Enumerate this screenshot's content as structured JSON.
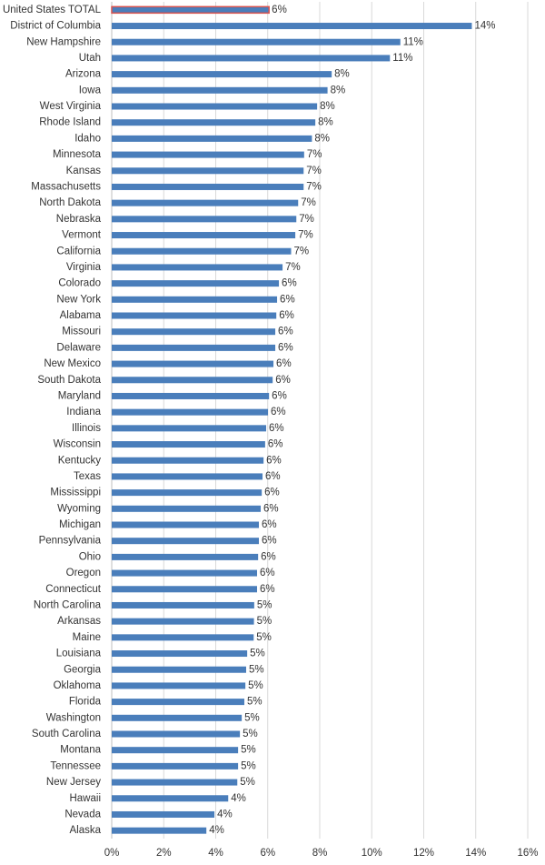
{
  "chart_data": {
    "type": "hbar",
    "categories": [
      "United States TOTAL",
      "District of Columbia",
      "New Hampshire",
      "Utah",
      "Arizona",
      "Iowa",
      "West Virginia",
      "Rhode Island",
      "Idaho",
      "Minnesota",
      "Kansas",
      "Massachusetts",
      "North Dakota",
      "Nebraska",
      "Vermont",
      "California",
      "Virginia",
      "Colorado",
      "New York",
      "Alabama",
      "Missouri",
      "Delaware",
      "New Mexico",
      "South Dakota",
      "Maryland",
      "Indiana",
      "Illinois",
      "Wisconsin",
      "Kentucky",
      "Texas",
      "Mississippi",
      "Wyoming",
      "Michigan",
      "Pennsylvania",
      "Ohio",
      "Oregon",
      "Connecticut",
      "North Carolina",
      "Arkansas",
      "Maine",
      "Louisiana",
      "Georgia",
      "Oklahoma",
      "Florida",
      "Washington",
      "South Carolina",
      "Montana",
      "Tennessee",
      "New Jersey",
      "Hawaii",
      "Nevada",
      "Alaska"
    ],
    "values": [
      6.05,
      13.85,
      11.1,
      10.7,
      8.46,
      8.3,
      7.9,
      7.83,
      7.7,
      7.4,
      7.38,
      7.38,
      7.17,
      7.1,
      7.06,
      6.9,
      6.57,
      6.43,
      6.36,
      6.33,
      6.29,
      6.29,
      6.22,
      6.19,
      6.05,
      6.01,
      5.94,
      5.9,
      5.84,
      5.8,
      5.77,
      5.73,
      5.66,
      5.66,
      5.63,
      5.59,
      5.59,
      5.48,
      5.47,
      5.46,
      5.21,
      5.17,
      5.14,
      5.1,
      5.0,
      4.93,
      4.86,
      4.86,
      4.83,
      4.48,
      3.95,
      3.64
    ],
    "value_labels": [
      "6%",
      "14%",
      "11%",
      "11%",
      "8%",
      "8%",
      "8%",
      "8%",
      "8%",
      "7%",
      "7%",
      "7%",
      "7%",
      "7%",
      "7%",
      "7%",
      "7%",
      "6%",
      "6%",
      "6%",
      "6%",
      "6%",
      "6%",
      "6%",
      "6%",
      "6%",
      "6%",
      "6%",
      "6%",
      "6%",
      "6%",
      "6%",
      "6%",
      "6%",
      "6%",
      "6%",
      "6%",
      "5%",
      "5%",
      "5%",
      "5%",
      "5%",
      "5%",
      "5%",
      "5%",
      "5%",
      "5%",
      "5%",
      "5%",
      "4%",
      "4%",
      "4%"
    ],
    "color": "#4a7ebb",
    "highlight": {
      "index": 0,
      "color": "#d9534f"
    },
    "xlim": [
      0,
      16
    ],
    "xticks": [
      {
        "value": 0,
        "label": "0%"
      },
      {
        "value": 2,
        "label": "2%"
      },
      {
        "value": 4,
        "label": "4%"
      },
      {
        "value": 6,
        "label": "6%"
      },
      {
        "value": 8,
        "label": "8%"
      },
      {
        "value": 10,
        "label": "10%"
      },
      {
        "value": 12,
        "label": "12%"
      },
      {
        "value": 14,
        "label": "14%"
      },
      {
        "value": 16,
        "label": "16%"
      }
    ],
    "grid": true
  }
}
